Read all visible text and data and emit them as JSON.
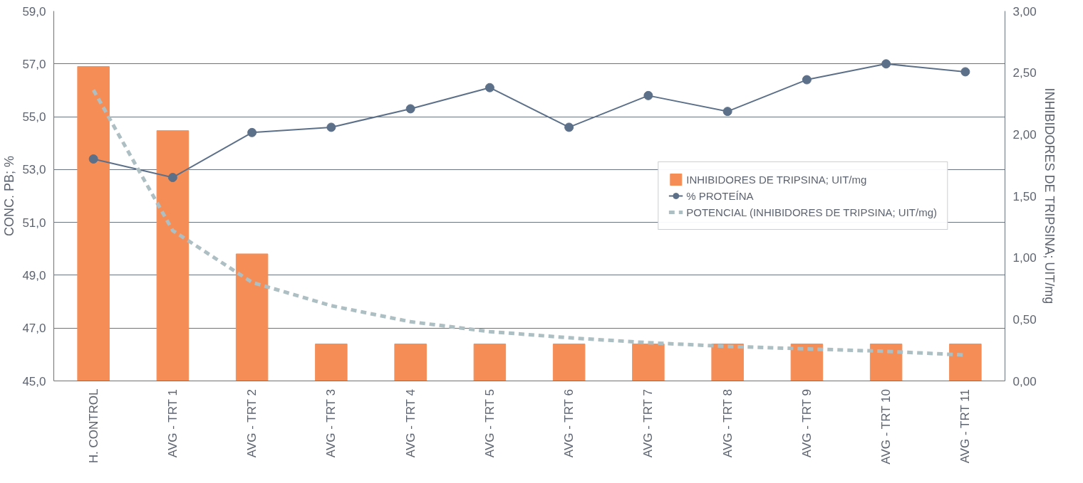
{
  "chart_data": {
    "type": "bar",
    "categories": [
      "H. CONTROL",
      "AVG - TRT 1",
      "AVG - TRT 2",
      "AVG - TRT 3",
      "AVG - TRT 4",
      "AVG - TRT 5",
      "AVG - TRT 6",
      "AVG - TRT 7",
      "AVG - TRT 8",
      "AVG - TRT 9",
      "AVG - TRT 10",
      "AVG - TRT 11"
    ],
    "ylabel": "CONC. PB; %",
    "y2label": "INHIBIDORES DE TRIPSINA; UIT/mg",
    "ylim": [
      45,
      59
    ],
    "yticks": [
      {
        "value": 45,
        "label": "45,0"
      },
      {
        "value": 47,
        "label": "47,0"
      },
      {
        "value": 49,
        "label": "49,0"
      },
      {
        "value": 51,
        "label": "51,0"
      },
      {
        "value": 53,
        "label": "53,0"
      },
      {
        "value": 55,
        "label": "55,0"
      },
      {
        "value": 57,
        "label": "57,0"
      },
      {
        "value": 59,
        "label": "59,0"
      }
    ],
    "y2lim": [
      0,
      3
    ],
    "y2ticks": [
      {
        "value": 0,
        "label": "0,00"
      },
      {
        "value": 0.5,
        "label": "0,50"
      },
      {
        "value": 1,
        "label": "1,00"
      },
      {
        "value": 1.5,
        "label": "1,50"
      },
      {
        "value": 2,
        "label": "2,00"
      },
      {
        "value": 2.5,
        "label": "2,50"
      },
      {
        "value": 3,
        "label": "3,00"
      }
    ],
    "grid": "y",
    "legend": "right",
    "series": [
      {
        "name": "INHIBIDORES DE TRIPSINA; UIT/mg",
        "axis": "y2",
        "color": "#f58d57",
        "values": [
          2.55,
          2.03,
          1.03,
          0.3,
          0.3,
          0.3,
          0.3,
          0.3,
          0.3,
          0.3,
          0.3,
          0.3
        ]
      },
      {
        "name": "% PROTEÍNA",
        "type": "line",
        "axis": "y",
        "color": "#5d7089",
        "marker": "circle",
        "line_style": "solid",
        "values": [
          53.4,
          52.7,
          54.4,
          54.6,
          55.3,
          56.1,
          54.6,
          55.8,
          55.2,
          56.4,
          57.0,
          56.7
        ]
      },
      {
        "name": "POTENCIAL (INHIBIDORES DE TRIPSINA; UIT/mg)",
        "type": "line",
        "axis": "y2",
        "color": "#aebfc4",
        "marker": "none",
        "line_style": "dashed",
        "values": [
          2.36,
          1.22,
          0.8,
          0.61,
          0.48,
          0.4,
          0.35,
          0.31,
          0.28,
          0.26,
          0.24,
          0.21
        ]
      }
    ]
  }
}
